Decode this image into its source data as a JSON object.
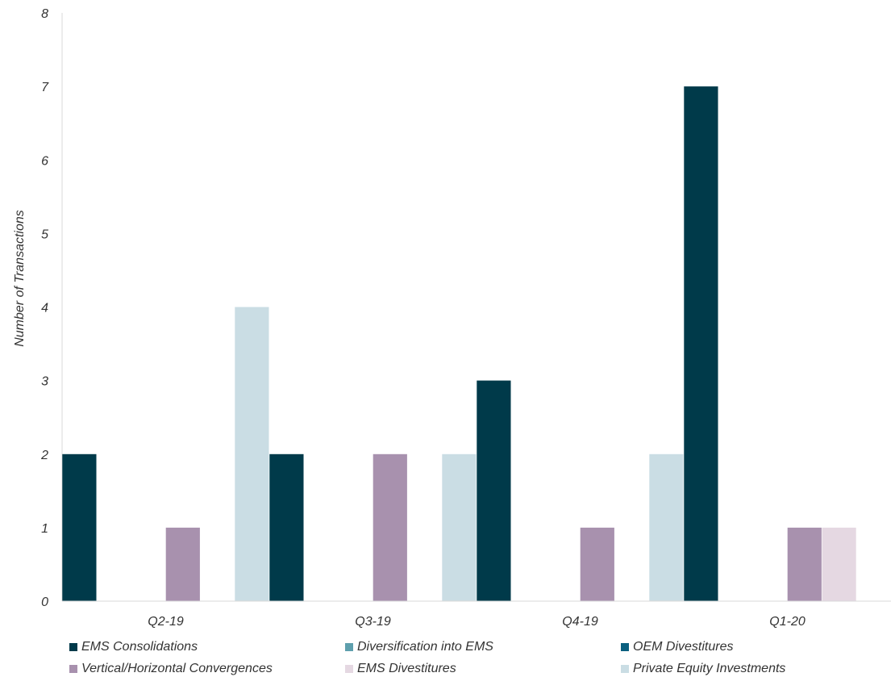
{
  "chart_data": {
    "type": "bar",
    "ylabel": "Number of Transactions",
    "xlabel": "",
    "ylim": [
      0,
      8
    ],
    "yticks": [
      0,
      1,
      2,
      3,
      4,
      5,
      6,
      7,
      8
    ],
    "grid": false,
    "legend_position": "bottom",
    "categories": [
      "Q2-19",
      "Q3-19",
      "Q4-19",
      "Q1-20"
    ],
    "series": [
      {
        "name": "EMS Consolidations",
        "color": "#003a4a",
        "values": [
          2,
          2,
          3,
          7
        ]
      },
      {
        "name": "Diversification into EMS",
        "color": "#5e9fad",
        "values": [
          0,
          0,
          0,
          0
        ]
      },
      {
        "name": "OEM Divestitures",
        "color": "#0a5f7f",
        "values": [
          0,
          0,
          0,
          0
        ]
      },
      {
        "name": "Vertical/Horizontal Convergences",
        "color": "#a891ae",
        "values": [
          1,
          2,
          1,
          1
        ]
      },
      {
        "name": "EMS Divestitures",
        "color": "#e5d8e2",
        "values": [
          0,
          0,
          0,
          1
        ]
      },
      {
        "name": "Private Equity Investments",
        "color": "#cadde4",
        "values": [
          4,
          2,
          2,
          0
        ]
      }
    ]
  }
}
